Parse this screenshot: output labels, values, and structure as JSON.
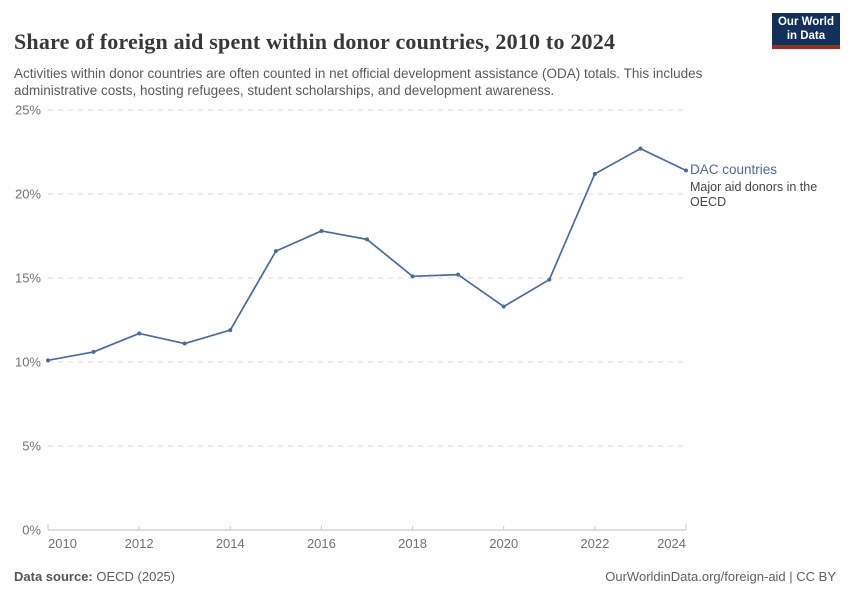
{
  "header": {
    "title": "Share of foreign aid spent within donor countries, 2010 to 2024",
    "subtitle": "Activities within donor countries are often counted in net official development assistance (ODA) totals. This includes administrative costs, hosting refugees, student scholarships, and development awareness.",
    "logo_line1": "Our World",
    "logo_line2": "in Data"
  },
  "chart_data": {
    "type": "line",
    "title": "Share of foreign aid spent within donor countries, 2010 to 2024",
    "x": [
      2010,
      2011,
      2012,
      2013,
      2014,
      2015,
      2016,
      2017,
      2018,
      2019,
      2020,
      2021,
      2022,
      2023,
      2024
    ],
    "series": [
      {
        "name": "DAC countries",
        "description": "Major aid donors in the OECD",
        "color": "#4c6a9c",
        "values": [
          10.1,
          10.6,
          11.7,
          11.1,
          11.9,
          16.6,
          17.8,
          17.3,
          15.1,
          15.2,
          13.3,
          14.9,
          21.2,
          22.7,
          21.4
        ]
      }
    ],
    "xticks": [
      2010,
      2012,
      2014,
      2016,
      2018,
      2020,
      2022,
      2024
    ],
    "yticks": [
      0,
      5,
      10,
      15,
      20,
      25
    ],
    "ytick_suffix": "%",
    "ylim": [
      0,
      25
    ],
    "xlabel": "",
    "ylabel": "",
    "grid": "horizontal-dashed",
    "legend_position": "right-of-line-end"
  },
  "legend": {
    "label": "DAC countries",
    "description": "Major aid donors in the OECD"
  },
  "footer": {
    "source_label": "Data source:",
    "source_value": " OECD (2025)",
    "right_text": "OurWorldinData.org/foreign-aid | CC BY"
  },
  "colors": {
    "line": "#4c6a9c",
    "gridline": "#dcdcdc",
    "axis": "#bdbdbd",
    "tick": "#c9c9c9",
    "logo_navy": "#12305a",
    "logo_red": "#a52823",
    "title_text": "#383838",
    "subtitle_text": "#5a5a5a",
    "axis_text": "#737373",
    "footer_text": "#606060"
  }
}
